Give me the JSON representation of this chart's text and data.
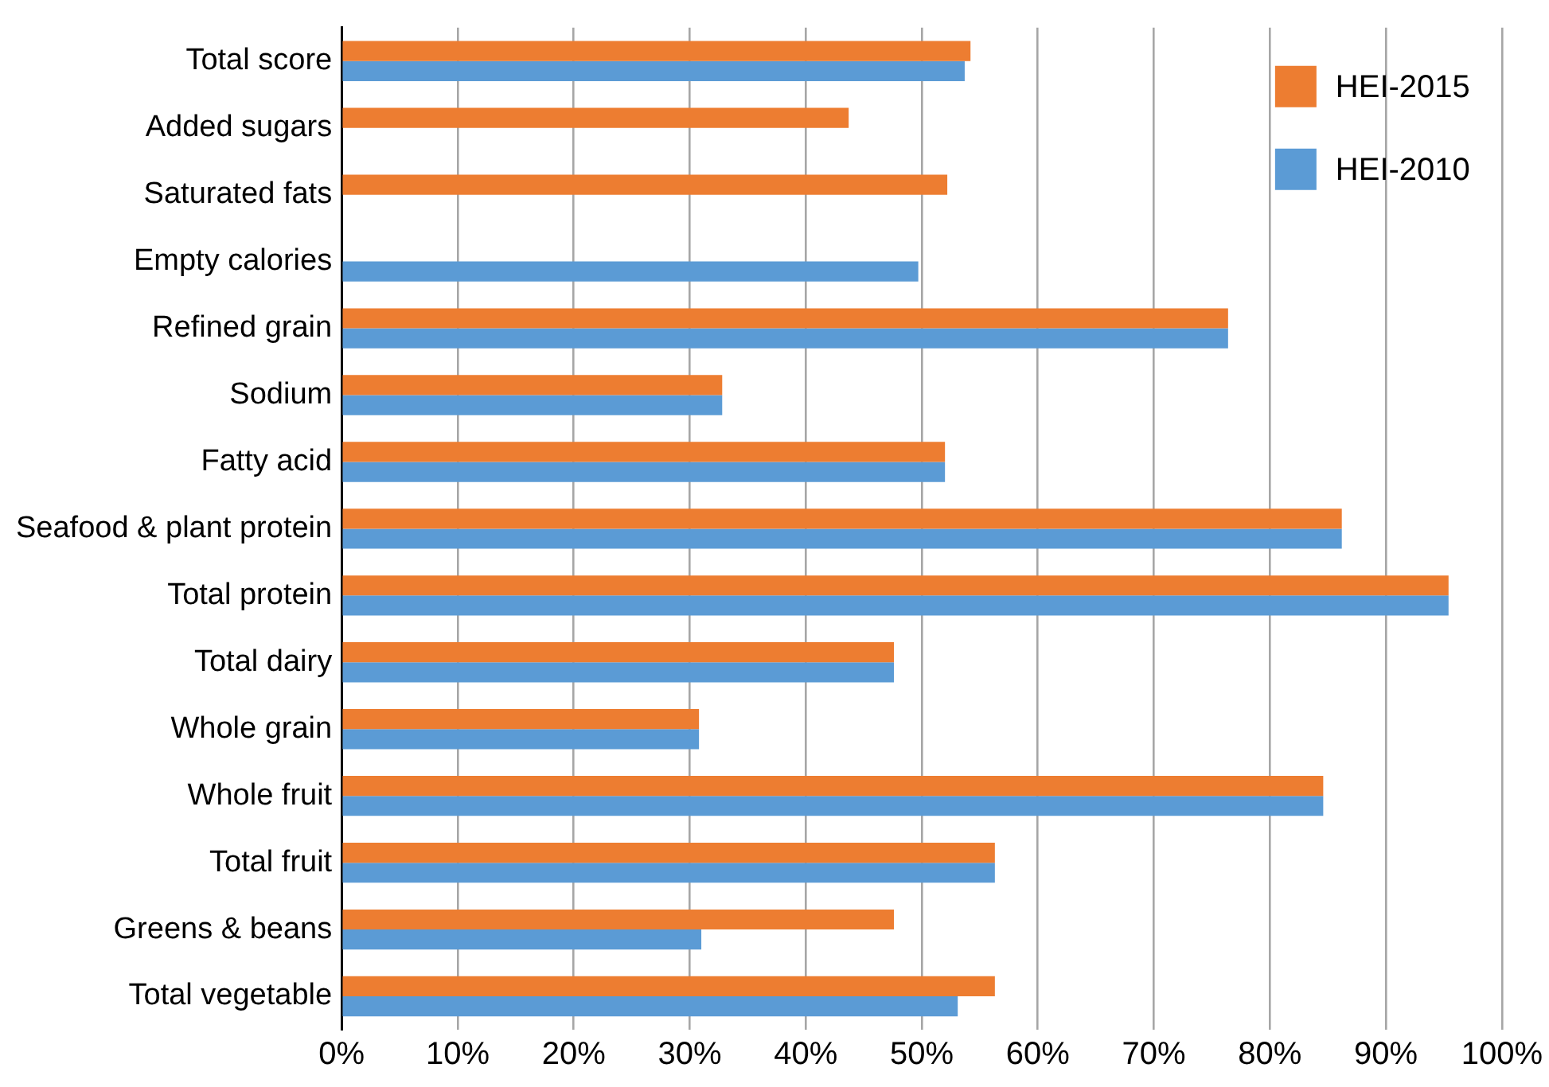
{
  "chart_data": {
    "type": "bar",
    "orientation": "horizontal",
    "categories": [
      "Total score",
      "Added sugars",
      "Saturated fats",
      "Empty calories",
      "Refined grain",
      "Sodium",
      "Fatty acid",
      "Seafood & plant protein",
      "Total protein",
      "Total dairy",
      "Whole grain",
      "Whole fruit",
      "Total fruit",
      "Greens & beans",
      "Total vegetable"
    ],
    "series": [
      {
        "name": "HEI-2015",
        "color": "#ed7d31",
        "values": [
          54.2,
          43.7,
          52.2,
          null,
          76.4,
          32.8,
          52.0,
          86.2,
          95.4,
          47.6,
          30.8,
          84.6,
          56.3,
          47.6,
          56.3
        ]
      },
      {
        "name": "HEI-2010",
        "color": "#5b9bd5",
        "values": [
          53.7,
          null,
          null,
          49.7,
          76.4,
          32.8,
          52.0,
          86.2,
          95.4,
          47.6,
          30.8,
          84.6,
          56.3,
          31.0,
          53.1
        ]
      }
    ],
    "xlim": [
      0,
      100
    ],
    "xticks": [
      {
        "value": 0,
        "label": "0%"
      },
      {
        "value": 10,
        "label": "10%"
      },
      {
        "value": 20,
        "label": "20%"
      },
      {
        "value": 30,
        "label": "30%"
      },
      {
        "value": 40,
        "label": "40%"
      },
      {
        "value": 50,
        "label": "50%"
      },
      {
        "value": 60,
        "label": "60%"
      },
      {
        "value": 70,
        "label": "70%"
      },
      {
        "value": 80,
        "label": "80%"
      },
      {
        "value": 90,
        "label": "90%"
      },
      {
        "value": 100,
        "label": "100%"
      }
    ],
    "grid": "x",
    "legend": "top right"
  }
}
